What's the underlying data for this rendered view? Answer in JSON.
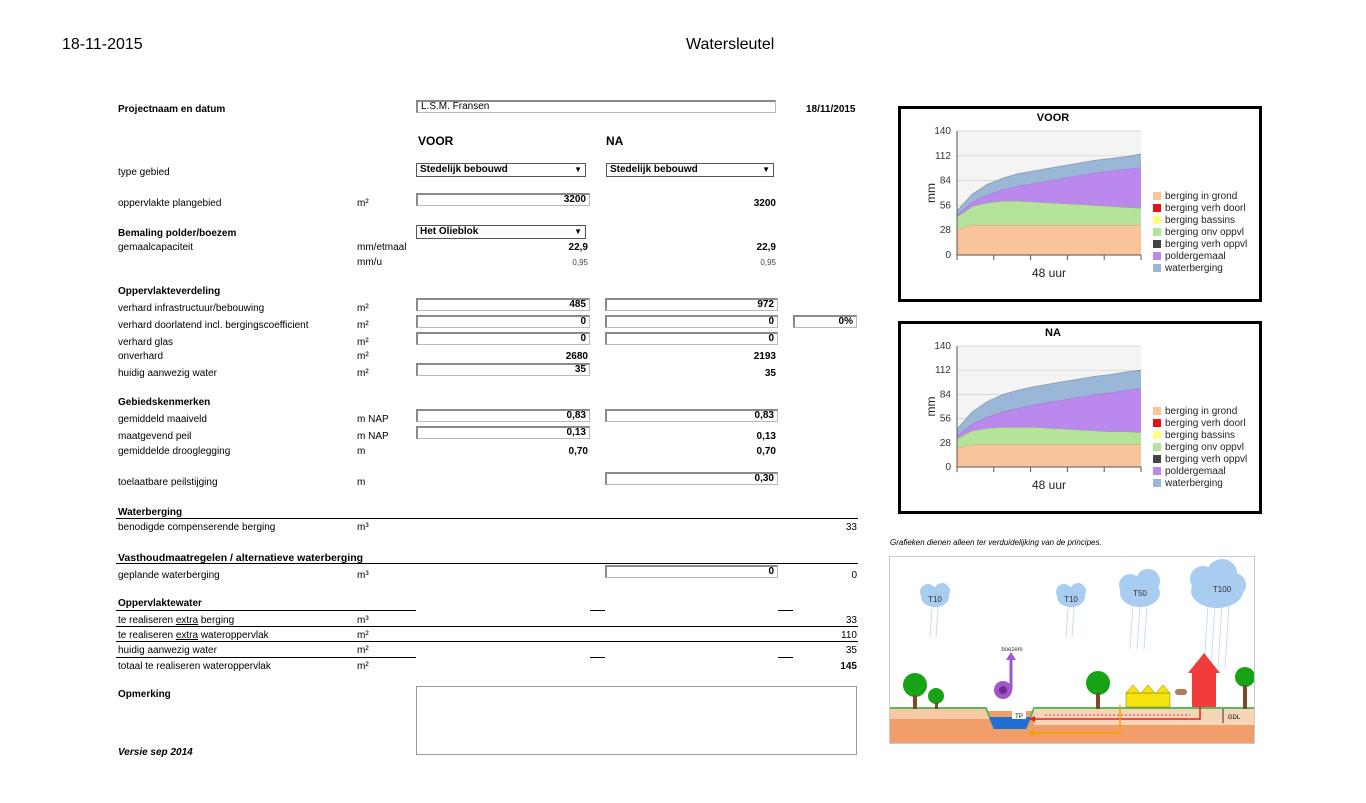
{
  "header": {
    "date": "18-11-2015",
    "title": "Watersleutel"
  },
  "project": {
    "label": "Projectnaam en datum",
    "name": "L.S.M. Fransen",
    "date": "18/11/2015"
  },
  "columns": {
    "voor": "VOOR",
    "na": "NA"
  },
  "type_gebied": {
    "label": "type gebied",
    "voor": "Stedelijk bebouwd",
    "na": "Stedelijk bebouwd"
  },
  "oppervlakte": {
    "label": "oppervlakte plangebied",
    "unit": "m²",
    "voor": "3200",
    "na": "3200"
  },
  "bemaling": {
    "label": "Bemaling polder/boezem",
    "select": "Het Olieblok",
    "gemaal_label": "gemaalcapaciteit",
    "gemaal_unit": "mm/etmaal",
    "gemaal_voor": "22,9",
    "gemaal_na": "22,9",
    "mmu_unit": "mm/u",
    "mmu_voor": "0,95",
    "mmu_na": "0,95"
  },
  "oppervlakteverdeling": {
    "heading": "Oppervlakteverdeling",
    "rows": [
      {
        "label": "verhard infrastructuur/bebouwing",
        "unit": "m²",
        "voor": "485",
        "na": "972"
      },
      {
        "label": "verhard doorlatend incl. bergingscoefficient",
        "unit": "m²",
        "voor": "0",
        "na": "0",
        "extra": "0%"
      },
      {
        "label": "verhard glas",
        "unit": "m²",
        "voor": "0",
        "na": "0"
      },
      {
        "label": "onverhard",
        "unit": "m²",
        "voor": "2680",
        "na": "2193"
      },
      {
        "label": "huidig aanwezig water",
        "unit": "m²",
        "voor": "35",
        "na": "35"
      }
    ]
  },
  "gebiedskenmerken": {
    "heading": "Gebiedskenmerken",
    "rows": [
      {
        "label": "gemiddeld maaiveld",
        "unit": "m NAP",
        "voor": "0,83",
        "na": "0,83"
      },
      {
        "label": "maatgevend peil",
        "unit": "m NAP",
        "voor": "0,13",
        "na": "0,13"
      },
      {
        "label": "gemiddelde drooglegging",
        "unit": "m",
        "voor": "0,70",
        "na": "0,70"
      }
    ],
    "toelaatbaar_label": "toelaatbare peilstijging",
    "toelaatbaar_unit": "m",
    "toelaatbaar_na": "0,30"
  },
  "waterberging": {
    "heading": "Waterberging",
    "label": "benodigde compenserende berging",
    "unit": "m³",
    "value": "33"
  },
  "vasthoud": {
    "heading": "Vasthoudmaatregelen / alternatieve waterberging",
    "label": "geplande waterberging",
    "unit": "m³",
    "input": "0",
    "value": "0"
  },
  "oppervlaktewater": {
    "heading": "Oppervlaktewater",
    "rows": [
      {
        "pre": "te realiseren ",
        "u": "extra",
        "post": " berging",
        "unit": "m³",
        "value": "33"
      },
      {
        "pre": "te realiseren ",
        "u": "extra",
        "post": " wateroppervlak",
        "unit": "m²",
        "value": "110"
      },
      {
        "pre": "huidig aanwezig water",
        "u": "",
        "post": "",
        "unit": "m²",
        "value": "35"
      },
      {
        "pre": "totaal te realiseren wateroppervlak",
        "u": "",
        "post": "",
        "unit": "m²",
        "value": "145"
      }
    ]
  },
  "opmerking": {
    "label": "Opmerking",
    "value": ""
  },
  "footer": {
    "version": "Versie sep 2014"
  },
  "disclaimer": "Grafieken dienen alleen ter verduidelijking van de principes.",
  "illustration": {
    "clouds": [
      "T10",
      "T10",
      "T50",
      "T100"
    ],
    "boezem": "boezem",
    "tp": "TP",
    "gdl": "GDL"
  },
  "chart_data": [
    {
      "type": "area",
      "title": "VOOR",
      "xlabel": "48 uur",
      "ylabel": "mm",
      "ylim": [
        0,
        140
      ],
      "yticks": [
        0,
        28,
        56,
        84,
        112,
        140
      ],
      "x": [
        0,
        1,
        2,
        3,
        4,
        5,
        6,
        7,
        8,
        9,
        10,
        11,
        12
      ],
      "series": [
        {
          "name": "berging in grond",
          "color": "#f9c49a",
          "values": [
            29,
            34,
            34,
            34,
            34,
            34,
            34,
            34,
            34,
            34,
            34,
            34,
            34
          ]
        },
        {
          "name": "berging verh doorl",
          "color": "#e81010",
          "values": [
            0,
            0,
            0,
            0,
            0,
            0,
            0,
            0,
            0,
            0,
            0,
            0,
            0
          ]
        },
        {
          "name": "berging bassins",
          "color": "#ffff80",
          "values": [
            0,
            0,
            0,
            0,
            0,
            0,
            0,
            0,
            0,
            0,
            0,
            0,
            0
          ]
        },
        {
          "name": "berging onv oppvl",
          "color": "#b6e39a",
          "values": [
            14,
            21,
            25,
            27,
            27,
            26,
            25,
            24,
            23,
            22,
            21,
            20,
            19
          ]
        },
        {
          "name": "berging verh oppvl",
          "color": "#444444",
          "values": [
            0,
            0,
            0,
            0,
            0,
            0,
            0,
            0,
            0,
            0,
            0,
            0,
            0
          ]
        },
        {
          "name": "poldergemaal",
          "color": "#bb88ee",
          "values": [
            2,
            5,
            9,
            13,
            17,
            21,
            25,
            29,
            33,
            37,
            40,
            43,
            46
          ]
        },
        {
          "name": "waterberging",
          "color": "#9ab7d8",
          "values": [
            5,
            9,
            12,
            13,
            14,
            14,
            14,
            14,
            14,
            14,
            14,
            14,
            15
          ]
        }
      ]
    },
    {
      "type": "area",
      "title": "NA",
      "xlabel": "48 uur",
      "ylabel": "mm",
      "ylim": [
        0,
        140
      ],
      "yticks": [
        0,
        28,
        56,
        84,
        112,
        140
      ],
      "x": [
        0,
        1,
        2,
        3,
        4,
        5,
        6,
        7,
        8,
        9,
        10,
        11,
        12
      ],
      "series": [
        {
          "name": "berging in grond",
          "color": "#f9c49a",
          "values": [
            22,
            26,
            26,
            26,
            26,
            26,
            26,
            26,
            26,
            26,
            26,
            26,
            26
          ]
        },
        {
          "name": "berging verh doorl",
          "color": "#e81010",
          "values": [
            0,
            0,
            0,
            0,
            0,
            0,
            0,
            0,
            0,
            0,
            0,
            0,
            0
          ]
        },
        {
          "name": "berging bassins",
          "color": "#ffff80",
          "values": [
            0,
            0,
            0,
            0,
            0,
            0,
            0,
            0,
            0,
            0,
            0,
            0,
            0
          ]
        },
        {
          "name": "berging onv oppvl",
          "color": "#b6e39a",
          "values": [
            11,
            16,
            19,
            20,
            20,
            20,
            19,
            18,
            17,
            16,
            15,
            15,
            14
          ]
        },
        {
          "name": "berging verh oppvl",
          "color": "#444444",
          "values": [
            0,
            0,
            0,
            0,
            0,
            0,
            0,
            0,
            0,
            0,
            0,
            0,
            0
          ]
        },
        {
          "name": "poldergemaal",
          "color": "#bb88ee",
          "values": [
            3,
            8,
            13,
            18,
            22,
            26,
            30,
            34,
            38,
            42,
            45,
            48,
            51
          ]
        },
        {
          "name": "waterberging",
          "color": "#9ab7d8",
          "values": [
            8,
            14,
            18,
            20,
            21,
            21,
            21,
            21,
            21,
            21,
            21,
            21,
            21
          ]
        }
      ]
    }
  ]
}
